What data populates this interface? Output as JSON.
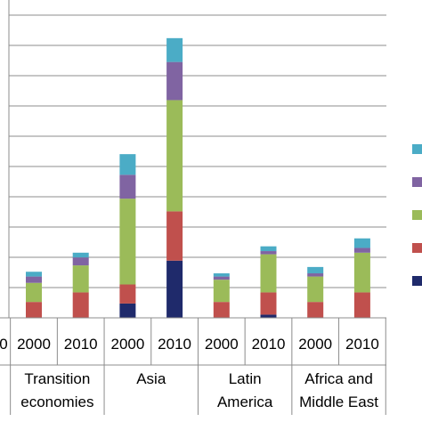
{
  "chart_data": {
    "type": "bar",
    "stacked": true,
    "grid": true,
    "legend_placement": "right",
    "colors": [
      "#1f2a6b",
      "#c0504d",
      "#9bbb59",
      "#8064a2",
      "#4bacc6"
    ],
    "groups": [
      {
        "label_lines": [
          "Transition",
          "economies"
        ],
        "years": [
          "2000",
          "2010"
        ]
      },
      {
        "label_lines": [
          "Asia"
        ],
        "years": [
          "2000",
          "2010"
        ]
      },
      {
        "label_lines": [
          "Latin",
          "America"
        ],
        "years": [
          "2000",
          "2010"
        ]
      },
      {
        "label_lines": [
          "Africa and",
          "Middle East"
        ],
        "years": [
          "2000",
          "2010"
        ]
      }
    ],
    "categories": [
      "2000",
      "2010",
      "2000",
      "2010",
      "2000",
      "2010",
      "2000",
      "2010"
    ],
    "series": [
      {
        "values": [
          0.0,
          0.0,
          0.9,
          3.6,
          0.0,
          0.2,
          0.0,
          0.0
        ]
      },
      {
        "values": [
          1.0,
          1.6,
          1.2,
          3.1,
          1.0,
          1.4,
          1.0,
          1.6
        ]
      },
      {
        "values": [
          1.2,
          1.7,
          5.4,
          7.0,
          1.4,
          2.4,
          1.6,
          2.5
        ]
      },
      {
        "values": [
          0.4,
          0.5,
          1.5,
          2.4,
          0.2,
          0.2,
          0.2,
          0.3
        ]
      },
      {
        "values": [
          0.3,
          0.3,
          1.3,
          1.5,
          0.2,
          0.3,
          0.4,
          0.6
        ]
      }
    ],
    "ylim": [
      0,
      20.0
    ],
    "edge_tick_label": "0"
  }
}
